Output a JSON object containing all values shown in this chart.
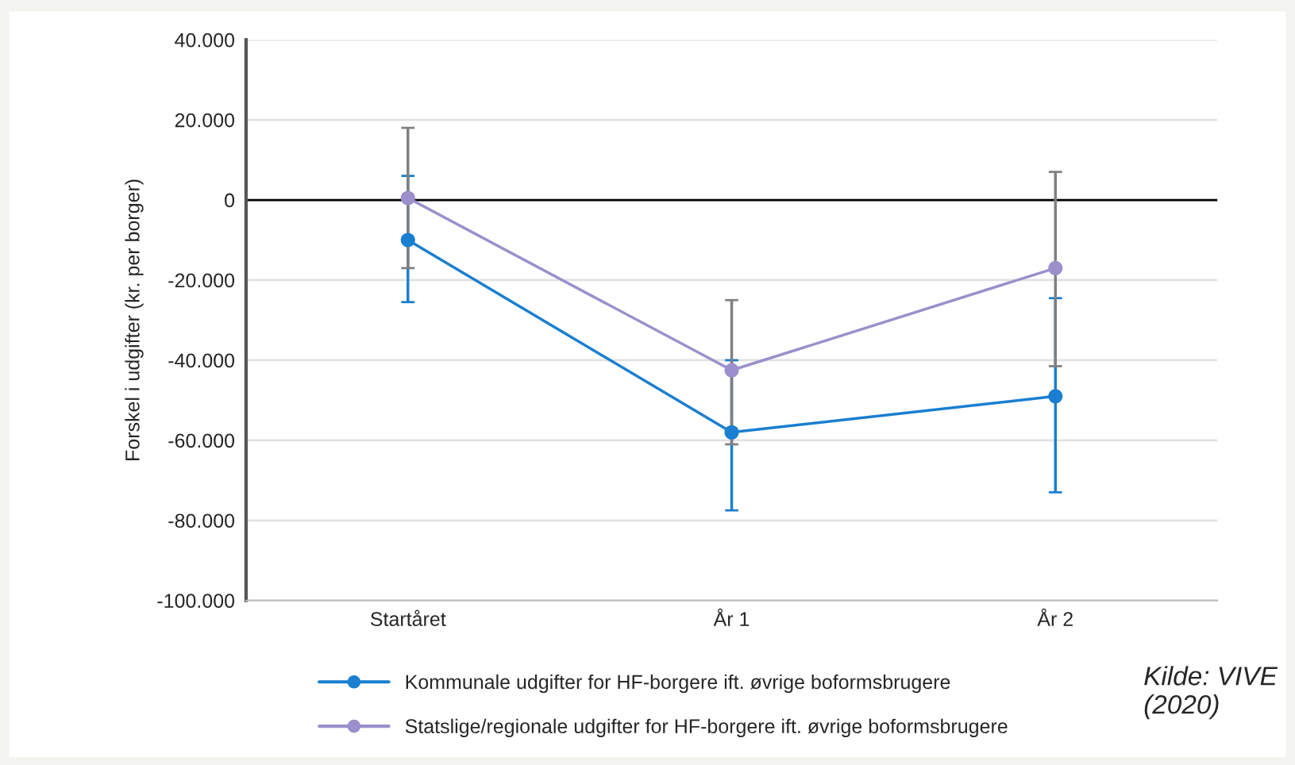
{
  "chart_data": {
    "type": "line",
    "categories": [
      "Startåret",
      "År 1",
      "År 2"
    ],
    "ylabel": "Forskel i udgifter (kr. per borger)",
    "series": [
      {
        "name": "Kommunale udgifter for HF-borgere ift. øvrige boformsbrugere",
        "color": "#1a7fd0",
        "values": [
          -10000,
          -58000,
          -49000
        ],
        "errors": [
          [
            -25500,
            6000
          ],
          [
            -77500,
            -40000
          ],
          [
            -73000,
            -24500
          ]
        ]
      },
      {
        "name": "Statslige/regionale udgifter for HF-borgere ift. øvrige boformsbrugere",
        "color": "#9b8fcc",
        "values": [
          500,
          -42500,
          -17000
        ],
        "errors": [
          [
            -17000,
            18000
          ],
          [
            -61000,
            -25000
          ],
          [
            -41500,
            7000
          ]
        ]
      }
    ],
    "ylim": [
      -100000,
      40000
    ],
    "yticks": [
      {
        "value": -100000,
        "label": "-100.000"
      },
      {
        "value": -80000,
        "label": "-80.000"
      },
      {
        "value": -60000,
        "label": "-60.000"
      },
      {
        "value": -40000,
        "label": "-40.000"
      },
      {
        "value": -20000,
        "label": "-20.000"
      },
      0,
      {
        "value": 20000,
        "label": "20.000"
      },
      {
        "value": 40000,
        "label": "40.000"
      }
    ],
    "ref_lines": [
      {
        "axis": "y",
        "value": 0,
        "color": "#000000"
      }
    ],
    "grid": "y",
    "legend": "bottom",
    "marker": "circle",
    "line_style": "solid",
    "annotations": [
      "Kilde: VIVE (2020)"
    ]
  }
}
